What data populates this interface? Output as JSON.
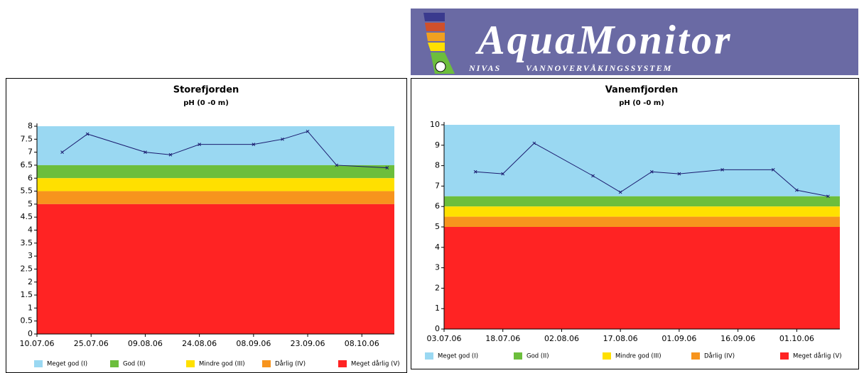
{
  "logo": {
    "name": "AquaMonitor",
    "owner": "NIVAS",
    "tagline": "VANNOVERVÅKINGSSYSTEM"
  },
  "chart_data": [
    {
      "type": "line",
      "title": "Storefjorden",
      "subtitle": "pH (0 -0 m)",
      "x": [
        "17.07.06",
        "24.07.06",
        "09.08.06",
        "16.08.06",
        "24.08.06",
        "08.09.06",
        "16.09.06",
        "23.09.06",
        "01.10.06",
        "15.10.06"
      ],
      "series": [
        {
          "name": "pH",
          "color": "#1a1a6e",
          "values": [
            7.0,
            7.7,
            7.0,
            6.9,
            7.3,
            7.3,
            7.5,
            7.8,
            6.5,
            6.4
          ]
        }
      ],
      "bands": [
        {
          "name": "Meget god (I)",
          "color": "#9ad8f2",
          "from": 6.5,
          "to": 8
        },
        {
          "name": "God (II)",
          "color": "#6cbe3c",
          "from": 6,
          "to": 6.5
        },
        {
          "name": "Mindre god (III)",
          "color": "#ffe000",
          "from": 5.5,
          "to": 6
        },
        {
          "name": "Dårlig (IV)",
          "color": "#f7941d",
          "from": 5,
          "to": 5.5
        },
        {
          "name": "Meget dårlig (V)",
          "color": "#ff2323",
          "from": 0,
          "to": 5
        }
      ],
      "xlim": [
        "10.07.06",
        "17.10.06"
      ],
      "xticks": [
        "10.07.06",
        "25.07.06",
        "09.08.06",
        "24.08.06",
        "08.09.06",
        "23.09.06",
        "08.10.06"
      ],
      "ylim": [
        0,
        8
      ],
      "yticks": [
        0,
        0.5,
        1,
        1.5,
        2,
        2.5,
        3,
        3.5,
        4,
        4.5,
        5,
        5.5,
        6,
        6.5,
        7,
        7.5,
        8
      ]
    },
    {
      "type": "line",
      "title": "Vanemfjorden",
      "subtitle": "pH (0 -0 m)",
      "x": [
        "11.07.06",
        "18.07.06",
        "26.07.06",
        "10.08.06",
        "17.08.06",
        "25.08.06",
        "01.09.06",
        "12.09.06",
        "25.09.06",
        "01.10.06",
        "09.10.06"
      ],
      "series": [
        {
          "name": "pH",
          "color": "#1a1a6e",
          "values": [
            7.7,
            7.6,
            9.1,
            7.5,
            6.7,
            7.7,
            7.6,
            7.8,
            7.8,
            6.8,
            6.5
          ]
        }
      ],
      "bands": [
        {
          "name": "Meget god (I)",
          "color": "#9ad8f2",
          "from": 6.5,
          "to": 10
        },
        {
          "name": "God (II)",
          "color": "#6cbe3c",
          "from": 6,
          "to": 6.5
        },
        {
          "name": "Mindre god (III)",
          "color": "#ffe000",
          "from": 5.5,
          "to": 6
        },
        {
          "name": "Dårlig (IV)",
          "color": "#f7941d",
          "from": 5,
          "to": 5.5
        },
        {
          "name": "Meget dårlig (V)",
          "color": "#ff2323",
          "from": 0,
          "to": 5
        }
      ],
      "xlim": [
        "03.07.06",
        "12.10.06"
      ],
      "xticks": [
        "03.07.06",
        "18.07.06",
        "02.08.06",
        "17.08.06",
        "01.09.06",
        "16.09.06",
        "01.10.06"
      ],
      "ylim": [
        0,
        10
      ],
      "yticks": [
        0,
        1,
        2,
        3,
        4,
        5,
        6,
        7,
        8,
        9,
        10
      ]
    }
  ]
}
